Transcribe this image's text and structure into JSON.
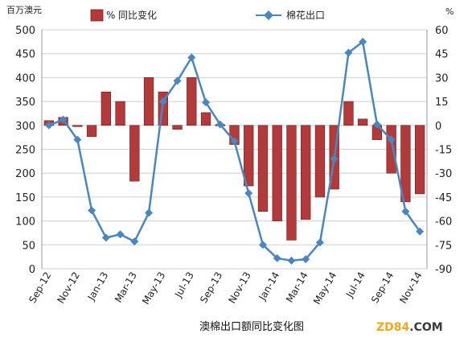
{
  "chart_data": {
    "type": "bar+line",
    "title": "澳棉出口额同比变化图",
    "left_axis_unit": "百万澳元",
    "right_axis_unit": "%",
    "left_ylim": [
      0,
      500
    ],
    "left_yticks": [
      0,
      50,
      100,
      150,
      200,
      250,
      300,
      350,
      400,
      450,
      500
    ],
    "right_ylim": [
      -90,
      60
    ],
    "right_yticks": [
      -90,
      -75,
      -60,
      -45,
      -30,
      -15,
      0,
      15,
      30,
      45,
      60
    ],
    "categories": [
      "Sep-12",
      "Oct-12",
      "Nov-12",
      "Dec-12",
      "Jan-13",
      "Feb-13",
      "Mar-13",
      "Apr-13",
      "May-13",
      "Jun-13",
      "Jul-13",
      "Aug-13",
      "Sep-13",
      "Oct-13",
      "Nov-13",
      "Dec-13",
      "Jan-14",
      "Feb-14",
      "Mar-14",
      "Apr-14",
      "May-14",
      "Jun-14",
      "Jul-14",
      "Aug-14",
      "Sep-14",
      "Oct-14",
      "Nov-14"
    ],
    "x_tick_labels": [
      "Sep-12",
      "Nov-12",
      "Jan-13",
      "Mar-13",
      "May-13",
      "Jul-13",
      "Sep-13",
      "Nov-13",
      "Jan-14",
      "Mar-14",
      "May-14",
      "Jul-14",
      "Sep-14",
      "Nov-14"
    ],
    "grid": true,
    "legend_position": "top",
    "series": [
      {
        "name": "同比变化",
        "legend_symbol": "%",
        "type": "bar",
        "axis": "right",
        "color": "#b23a3a",
        "values": [
          3,
          5,
          -0.5,
          -7,
          21,
          15,
          -35,
          30,
          21,
          -2.5,
          30,
          8,
          0.5,
          -12,
          -38,
          -54,
          -60,
          -72,
          -59,
          -45,
          -40,
          15,
          4,
          -9,
          -30,
          -48,
          -43
        ]
      },
      {
        "name": "棉花出口",
        "type": "line",
        "axis": "left",
        "color": "#4a86c0",
        "values": [
          300,
          312,
          270,
          122,
          65,
          72,
          57,
          117,
          350,
          393,
          442,
          348,
          302,
          267,
          158,
          50,
          22,
          17,
          20,
          55,
          230,
          452,
          475,
          302,
          270,
          120,
          78
        ]
      }
    ],
    "watermark": {
      "part1": "ZD84",
      "part2": ".COM"
    }
  }
}
